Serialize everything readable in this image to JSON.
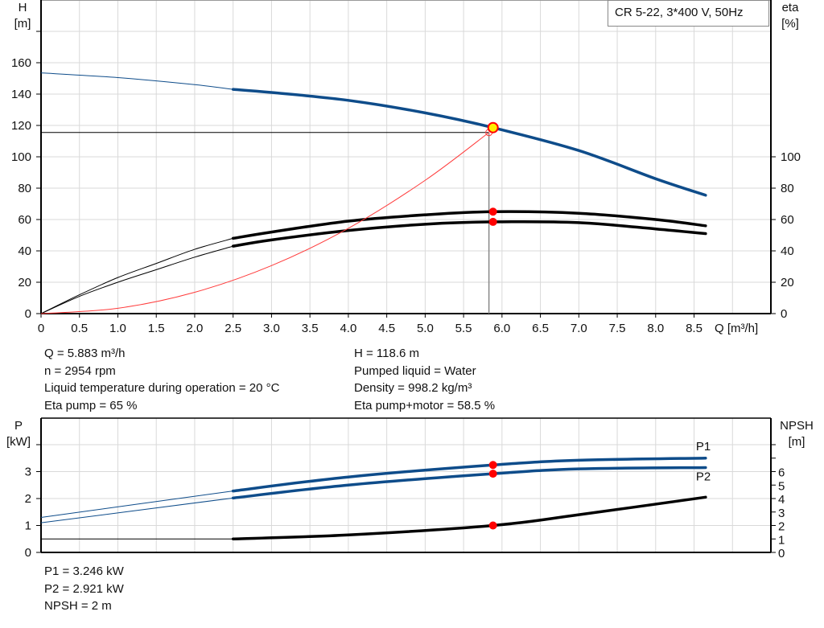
{
  "legend_box": "CR 5-22, 3*400 V, 50Hz",
  "colors": {
    "head": "#0e4c8a",
    "power": "#0e4c8a",
    "efficiency": "#000000",
    "npsh": "#000000",
    "system_curve": "#ff3b3b",
    "duty_point": "#ffee00",
    "marker": "#ff0000",
    "grid": "#d9d9d9"
  },
  "chart_data": [
    {
      "type": "line",
      "x_axis": {
        "label": "Q [m³/h]",
        "range": [
          0,
          9.5
        ],
        "ticks": [
          "0",
          "0.5",
          "1.0",
          "1.5",
          "2.0",
          "2.5",
          "3.0",
          "3.5",
          "4.0",
          "4.5",
          "5.0",
          "5.5",
          "6.0",
          "6.5",
          "7.0",
          "7.5",
          "8.0",
          "8.5"
        ]
      },
      "y_axis_left": {
        "label": "H",
        "unit": "[m]",
        "range": [
          0,
          200
        ],
        "ticks": [
          "0",
          "20",
          "40",
          "60",
          "80",
          "100",
          "120",
          "140",
          "160"
        ]
      },
      "y_axis_right": {
        "label": "eta",
        "unit": "[%]",
        "range": [
          0,
          100
        ],
        "ticks": [
          "0",
          "20",
          "40",
          "60",
          "80",
          "100"
        ]
      },
      "grid": true,
      "series": [
        {
          "id": "head",
          "axis": "left",
          "q": [
            0,
            1,
            2,
            2.5,
            3,
            4,
            5,
            5.883,
            7,
            8,
            8.65
          ],
          "values": [
            153.5,
            150.5,
            146,
            143,
            141,
            136,
            128,
            118.6,
            104,
            86,
            75.5
          ],
          "thick_from": 2.5
        },
        {
          "id": "eta_pump",
          "axis": "right",
          "q": [
            0,
            0.5,
            1,
            1.5,
            2,
            2.5,
            3,
            4,
            5,
            5.883,
            7,
            8,
            8.65
          ],
          "values": [
            0,
            12,
            23,
            32,
            41,
            48,
            52,
            59,
            63,
            65,
            64,
            60,
            56
          ],
          "thick_from": 2.5
        },
        {
          "id": "eta_total",
          "axis": "right",
          "q": [
            0,
            0.5,
            1,
            1.5,
            2,
            2.5,
            3,
            4,
            5,
            5.883,
            7,
            8,
            8.65
          ],
          "values": [
            0,
            11,
            20,
            28,
            36,
            43,
            47,
            53,
            57,
            58.5,
            58,
            54,
            51
          ],
          "thick_from": 2.5
        },
        {
          "id": "system_curve",
          "axis": "left",
          "q": [
            0,
            1,
            2,
            3,
            4,
            5,
            5.83
          ],
          "values": [
            0,
            3.4,
            13.6,
            30.6,
            54.4,
            85,
            115.5
          ]
        }
      ],
      "duty_point": {
        "q": 5.883,
        "h": 118.6,
        "eta_pump": 65,
        "eta_total": 58.5
      },
      "requested_point": {
        "q": 5.83,
        "h": 115.5
      }
    },
    {
      "type": "line",
      "x_axis": {
        "range": [
          0,
          9.5
        ]
      },
      "y_axis_left": {
        "label": "P",
        "unit": "[kW]",
        "range": [
          0,
          5
        ],
        "ticks": [
          "0",
          "1",
          "2",
          "3"
        ]
      },
      "y_axis_right": {
        "label": "NPSH",
        "unit": "[m]",
        "range": [
          0,
          10
        ],
        "ticks": [
          "0",
          "1",
          "2",
          "3",
          "4",
          "5",
          "6"
        ]
      },
      "grid": true,
      "series": [
        {
          "id": "p1",
          "name": "P1",
          "axis": "left",
          "q": [
            0,
            2.5,
            4,
            5.883,
            7,
            8.65
          ],
          "values": [
            1.3,
            2.28,
            2.8,
            3.246,
            3.42,
            3.5
          ],
          "thick_from": 2.5
        },
        {
          "id": "p2",
          "name": "P2",
          "axis": "left",
          "q": [
            0,
            2.5,
            4,
            5.883,
            7,
            8.65
          ],
          "values": [
            1.1,
            2.02,
            2.5,
            2.921,
            3.1,
            3.15
          ],
          "thick_from": 2.5
        },
        {
          "id": "npsh",
          "axis": "right",
          "q": [
            0,
            2.5,
            4,
            5.883,
            7,
            8.65
          ],
          "values": [
            1,
            1,
            1.3,
            2,
            2.8,
            4.1
          ],
          "thick_from": 2.5
        }
      ],
      "duty_point": {
        "q": 5.883,
        "p1": 3.246,
        "p2": 2.921,
        "npsh": 2
      }
    }
  ],
  "info_top_left": [
    "Q = 5.883 m³/h",
    "n = 2954 rpm",
    "Liquid temperature during operation = 20 °C",
    "Eta pump = 65 %"
  ],
  "info_top_right": [
    "H = 118.6 m",
    "Pumped liquid = Water",
    "Density = 998.2 kg/m³",
    "Eta pump+motor = 58.5 %"
  ],
  "info_bottom": [
    "P1 = 3.246 kW",
    "P2 = 2.921 kW",
    "NPSH = 2 m"
  ]
}
